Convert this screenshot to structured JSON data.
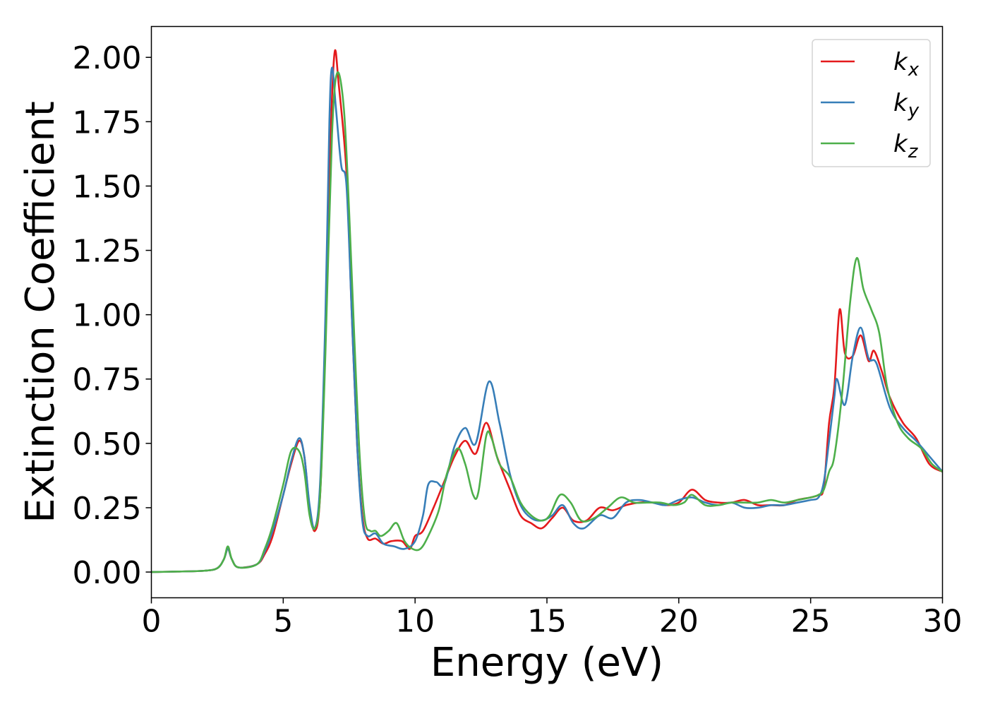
{
  "chart_data": {
    "type": "line",
    "xlabel": "Energy (eV)",
    "ylabel": "Extinction Coefficient",
    "xlim": [
      0,
      30
    ],
    "ylim": [
      -0.1,
      2.12
    ],
    "xticks": [
      0,
      5,
      10,
      15,
      20,
      25,
      30
    ],
    "xtick_labels": [
      "0",
      "5",
      "10",
      "15",
      "20",
      "25",
      "30"
    ],
    "yticks": [
      0,
      0.25,
      0.5,
      0.75,
      1.0,
      1.25,
      1.5,
      1.75,
      2.0
    ],
    "ytick_labels": [
      "0.00",
      "0.25",
      "0.50",
      "0.75",
      "1.00",
      "1.25",
      "1.50",
      "1.75",
      "2.00"
    ],
    "grid": false,
    "legend_position": "top-right",
    "series": [
      {
        "name": "k_x",
        "legend_main": "k",
        "legend_sub": "x",
        "color": "#e41a1c",
        "points": [
          [
            0,
            0
          ],
          [
            1,
            0.002
          ],
          [
            2,
            0.005
          ],
          [
            2.5,
            0.015
          ],
          [
            2.75,
            0.05
          ],
          [
            2.9,
            0.09
          ],
          [
            3.05,
            0.05
          ],
          [
            3.3,
            0.018
          ],
          [
            4,
            0.03
          ],
          [
            4.3,
            0.07
          ],
          [
            4.6,
            0.14
          ],
          [
            5,
            0.3
          ],
          [
            5.3,
            0.42
          ],
          [
            5.6,
            0.51
          ],
          [
            5.8,
            0.45
          ],
          [
            6,
            0.25
          ],
          [
            6.2,
            0.16
          ],
          [
            6.4,
            0.3
          ],
          [
            6.6,
            0.9
          ],
          [
            6.8,
            1.7
          ],
          [
            6.95,
            2.02
          ],
          [
            7.1,
            1.9
          ],
          [
            7.4,
            1.55
          ],
          [
            7.6,
            1.0
          ],
          [
            7.8,
            0.5
          ],
          [
            8,
            0.22
          ],
          [
            8.2,
            0.13
          ],
          [
            8.5,
            0.13
          ],
          [
            8.8,
            0.11
          ],
          [
            9.1,
            0.12
          ],
          [
            9.5,
            0.12
          ],
          [
            9.8,
            0.09
          ],
          [
            10,
            0.14
          ],
          [
            10.3,
            0.16
          ],
          [
            10.7,
            0.25
          ],
          [
            11.1,
            0.35
          ],
          [
            11.5,
            0.45
          ],
          [
            11.9,
            0.51
          ],
          [
            12.3,
            0.46
          ],
          [
            12.7,
            0.58
          ],
          [
            13.1,
            0.45
          ],
          [
            13.6,
            0.32
          ],
          [
            14,
            0.22
          ],
          [
            14.4,
            0.19
          ],
          [
            14.8,
            0.17
          ],
          [
            15.2,
            0.21
          ],
          [
            15.6,
            0.25
          ],
          [
            16,
            0.2
          ],
          [
            16.5,
            0.2
          ],
          [
            17,
            0.25
          ],
          [
            17.5,
            0.24
          ],
          [
            18,
            0.26
          ],
          [
            18.5,
            0.27
          ],
          [
            19,
            0.27
          ],
          [
            19.5,
            0.26
          ],
          [
            20,
            0.27
          ],
          [
            20.5,
            0.32
          ],
          [
            21,
            0.28
          ],
          [
            21.5,
            0.27
          ],
          [
            22,
            0.27
          ],
          [
            22.5,
            0.28
          ],
          [
            23,
            0.26
          ],
          [
            23.5,
            0.26
          ],
          [
            24,
            0.26
          ],
          [
            24.5,
            0.28
          ],
          [
            25,
            0.29
          ],
          [
            25.3,
            0.3
          ],
          [
            25.5,
            0.33
          ],
          [
            25.7,
            0.58
          ],
          [
            25.9,
            0.72
          ],
          [
            26.1,
            1.02
          ],
          [
            26.3,
            0.85
          ],
          [
            26.6,
            0.84
          ],
          [
            26.9,
            0.92
          ],
          [
            27.2,
            0.82
          ],
          [
            27.4,
            0.86
          ],
          [
            27.7,
            0.78
          ],
          [
            28,
            0.68
          ],
          [
            28.5,
            0.58
          ],
          [
            29,
            0.52
          ],
          [
            29.5,
            0.42
          ],
          [
            30,
            0.39
          ]
        ]
      },
      {
        "name": "k_y",
        "legend_main": "k",
        "legend_sub": "y",
        "color": "#377eb8",
        "points": [
          [
            0,
            0
          ],
          [
            1,
            0.002
          ],
          [
            2,
            0.005
          ],
          [
            2.5,
            0.015
          ],
          [
            2.75,
            0.05
          ],
          [
            2.9,
            0.09
          ],
          [
            3.05,
            0.05
          ],
          [
            3.3,
            0.018
          ],
          [
            4,
            0.03
          ],
          [
            4.3,
            0.08
          ],
          [
            4.6,
            0.16
          ],
          [
            5,
            0.3
          ],
          [
            5.3,
            0.43
          ],
          [
            5.6,
            0.52
          ],
          [
            5.8,
            0.45
          ],
          [
            6,
            0.26
          ],
          [
            6.2,
            0.17
          ],
          [
            6.4,
            0.35
          ],
          [
            6.6,
            1.0
          ],
          [
            6.75,
            1.75
          ],
          [
            6.85,
            1.96
          ],
          [
            7,
            1.8
          ],
          [
            7.2,
            1.58
          ],
          [
            7.4,
            1.5
          ],
          [
            7.6,
            1.0
          ],
          [
            7.8,
            0.5
          ],
          [
            8,
            0.2
          ],
          [
            8.2,
            0.14
          ],
          [
            8.5,
            0.15
          ],
          [
            8.8,
            0.11
          ],
          [
            9.2,
            0.1
          ],
          [
            9.6,
            0.09
          ],
          [
            10,
            0.12
          ],
          [
            10.3,
            0.22
          ],
          [
            10.5,
            0.34
          ],
          [
            10.8,
            0.35
          ],
          [
            11.1,
            0.34
          ],
          [
            11.5,
            0.49
          ],
          [
            11.9,
            0.56
          ],
          [
            12.3,
            0.5
          ],
          [
            12.8,
            0.74
          ],
          [
            13.2,
            0.58
          ],
          [
            13.6,
            0.38
          ],
          [
            14,
            0.26
          ],
          [
            14.4,
            0.21
          ],
          [
            14.8,
            0.2
          ],
          [
            15.2,
            0.22
          ],
          [
            15.6,
            0.26
          ],
          [
            16,
            0.19
          ],
          [
            16.4,
            0.17
          ],
          [
            17,
            0.22
          ],
          [
            17.5,
            0.21
          ],
          [
            18,
            0.27
          ],
          [
            18.5,
            0.28
          ],
          [
            19,
            0.27
          ],
          [
            19.5,
            0.26
          ],
          [
            20,
            0.28
          ],
          [
            20.5,
            0.29
          ],
          [
            21,
            0.27
          ],
          [
            21.5,
            0.26
          ],
          [
            22,
            0.27
          ],
          [
            22.5,
            0.25
          ],
          [
            23,
            0.25
          ],
          [
            23.5,
            0.26
          ],
          [
            24,
            0.26
          ],
          [
            24.5,
            0.27
          ],
          [
            25,
            0.28
          ],
          [
            25.3,
            0.29
          ],
          [
            25.5,
            0.35
          ],
          [
            25.7,
            0.51
          ],
          [
            25.9,
            0.68
          ],
          [
            26,
            0.75
          ],
          [
            26.3,
            0.65
          ],
          [
            26.6,
            0.84
          ],
          [
            26.9,
            0.95
          ],
          [
            27.2,
            0.83
          ],
          [
            27.5,
            0.81
          ],
          [
            28,
            0.64
          ],
          [
            28.5,
            0.56
          ],
          [
            29,
            0.51
          ],
          [
            29.5,
            0.45
          ],
          [
            30,
            0.39
          ]
        ]
      },
      {
        "name": "k_z",
        "legend_main": "k",
        "legend_sub": "z",
        "color": "#4daf4a",
        "points": [
          [
            0,
            0
          ],
          [
            1,
            0.002
          ],
          [
            2,
            0.005
          ],
          [
            2.5,
            0.015
          ],
          [
            2.75,
            0.05
          ],
          [
            2.9,
            0.1
          ],
          [
            3.05,
            0.05
          ],
          [
            3.3,
            0.018
          ],
          [
            4,
            0.03
          ],
          [
            4.3,
            0.09
          ],
          [
            4.6,
            0.18
          ],
          [
            5,
            0.34
          ],
          [
            5.3,
            0.47
          ],
          [
            5.6,
            0.47
          ],
          [
            5.8,
            0.39
          ],
          [
            6,
            0.22
          ],
          [
            6.2,
            0.17
          ],
          [
            6.4,
            0.3
          ],
          [
            6.6,
            0.85
          ],
          [
            6.85,
            1.7
          ],
          [
            7.05,
            1.94
          ],
          [
            7.3,
            1.8
          ],
          [
            7.5,
            1.4
          ],
          [
            7.7,
            0.9
          ],
          [
            7.9,
            0.45
          ],
          [
            8.1,
            0.2
          ],
          [
            8.3,
            0.16
          ],
          [
            8.5,
            0.16
          ],
          [
            8.7,
            0.14
          ],
          [
            9,
            0.16
          ],
          [
            9.3,
            0.19
          ],
          [
            9.6,
            0.12
          ],
          [
            9.9,
            0.09
          ],
          [
            10.2,
            0.09
          ],
          [
            10.5,
            0.14
          ],
          [
            10.9,
            0.24
          ],
          [
            11.2,
            0.38
          ],
          [
            11.6,
            0.48
          ],
          [
            11.9,
            0.42
          ],
          [
            12.2,
            0.3
          ],
          [
            12.4,
            0.31
          ],
          [
            12.7,
            0.53
          ],
          [
            12.9,
            0.52
          ],
          [
            13.2,
            0.42
          ],
          [
            13.6,
            0.37
          ],
          [
            14,
            0.27
          ],
          [
            14.4,
            0.22
          ],
          [
            14.8,
            0.2
          ],
          [
            15.1,
            0.22
          ],
          [
            15.5,
            0.3
          ],
          [
            15.9,
            0.27
          ],
          [
            16.3,
            0.2
          ],
          [
            16.8,
            0.21
          ],
          [
            17.3,
            0.25
          ],
          [
            17.8,
            0.29
          ],
          [
            18.3,
            0.27
          ],
          [
            18.8,
            0.27
          ],
          [
            19.3,
            0.27
          ],
          [
            19.8,
            0.26
          ],
          [
            20.2,
            0.27
          ],
          [
            20.5,
            0.3
          ],
          [
            21,
            0.26
          ],
          [
            21.5,
            0.26
          ],
          [
            22,
            0.27
          ],
          [
            22.5,
            0.27
          ],
          [
            23,
            0.27
          ],
          [
            23.5,
            0.28
          ],
          [
            24,
            0.27
          ],
          [
            24.5,
            0.28
          ],
          [
            25,
            0.29
          ],
          [
            25.3,
            0.3
          ],
          [
            25.5,
            0.32
          ],
          [
            25.7,
            0.39
          ],
          [
            25.9,
            0.45
          ],
          [
            26.2,
            0.7
          ],
          [
            26.5,
            1.05
          ],
          [
            26.75,
            1.22
          ],
          [
            27,
            1.1
          ],
          [
            27.3,
            1.02
          ],
          [
            27.6,
            0.93
          ],
          [
            27.9,
            0.72
          ],
          [
            28.3,
            0.58
          ],
          [
            28.7,
            0.52
          ],
          [
            29.2,
            0.48
          ],
          [
            29.6,
            0.42
          ],
          [
            30,
            0.39
          ]
        ]
      }
    ]
  }
}
